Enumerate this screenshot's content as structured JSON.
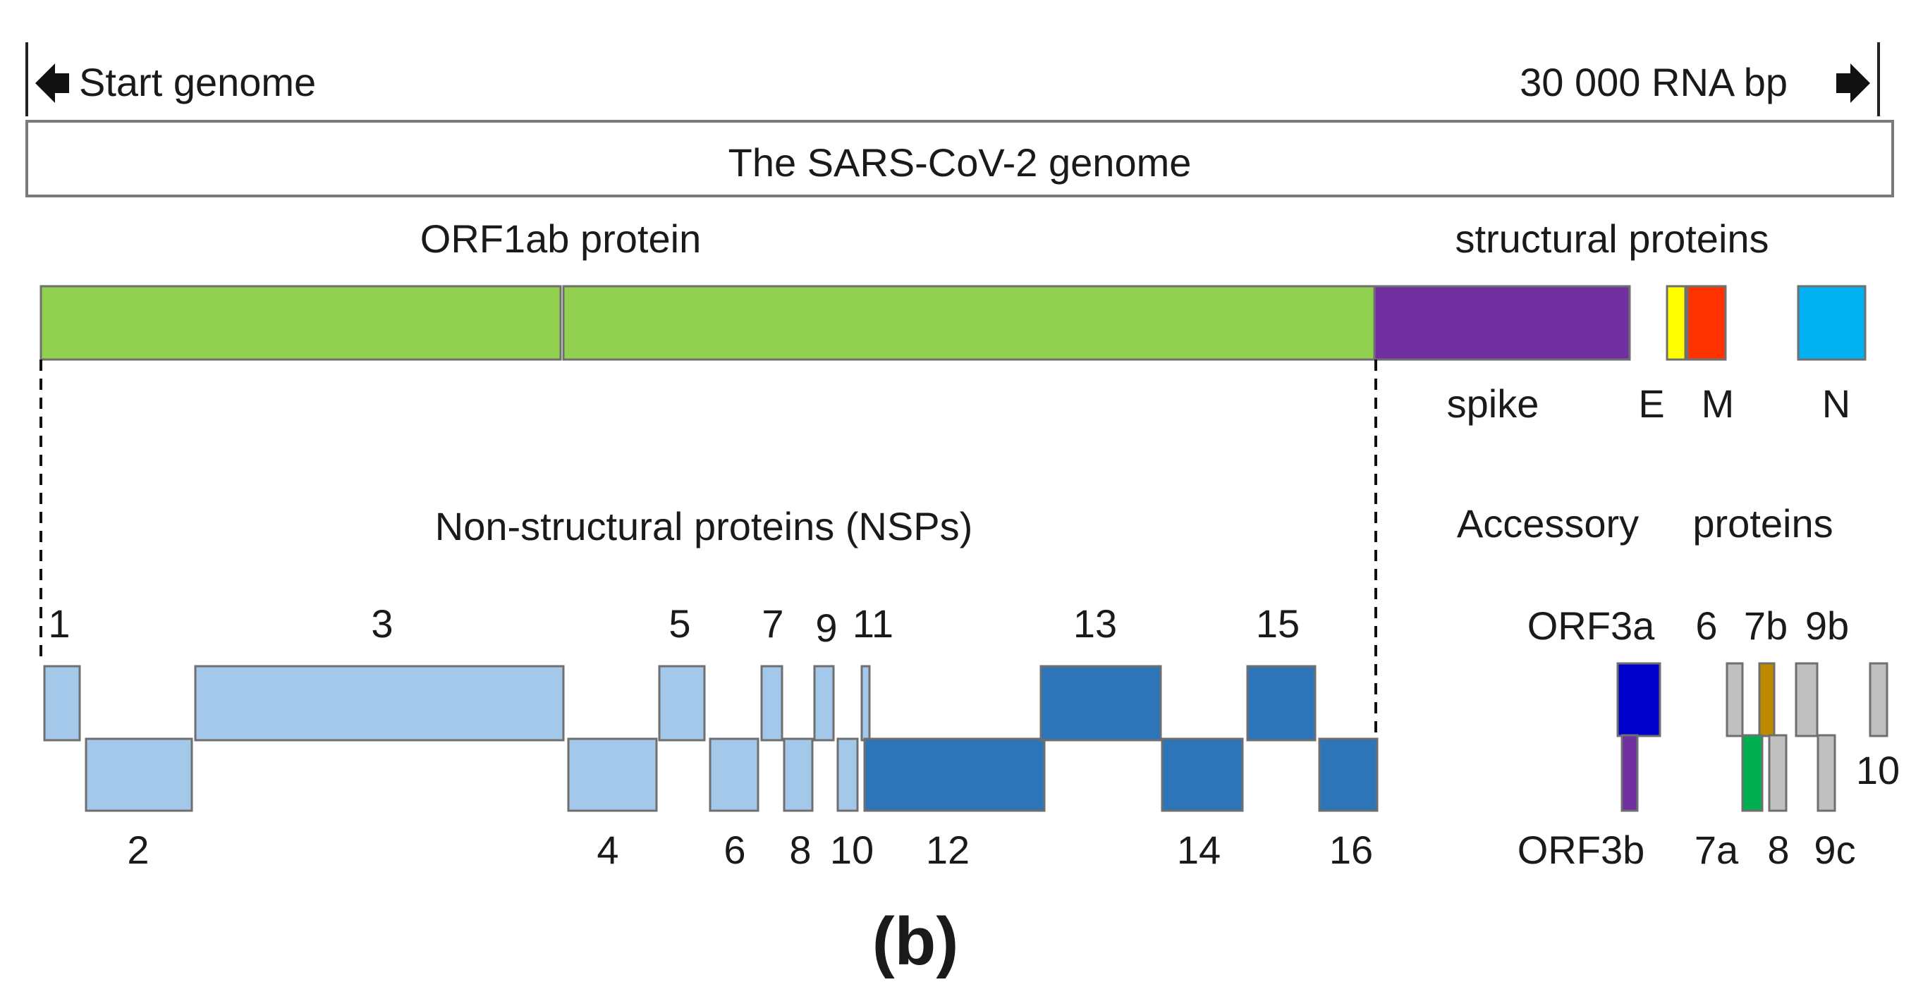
{
  "header": {
    "start_label": "Start genome",
    "end_label": "30 000 RNA bp",
    "genome_title": "The SARS-CoV-2  genome"
  },
  "orf1ab": {
    "label": "ORF1ab protein",
    "color": "#92d050"
  },
  "structural": {
    "label": "structural proteins",
    "spike": {
      "label": "spike",
      "color": "#7030a0"
    },
    "E": {
      "label": "E",
      "color": "#ffff00"
    },
    "M": {
      "label": "M",
      "color": "#ff3300"
    },
    "N": {
      "label": "N",
      "color": "#00b0f0"
    }
  },
  "nsps": {
    "label": "Non-structural proteins (NSPs)",
    "light_color": "#a4c8e9",
    "dark_color": "#2d75b8",
    "items": [
      "1",
      "2",
      "3",
      "4",
      "5",
      "6",
      "7",
      "8",
      "9",
      "10",
      "11",
      "12",
      "13",
      "14",
      "15",
      "16"
    ]
  },
  "accessory": {
    "label_word1": "Accessory",
    "label_word2": "proteins",
    "items": [
      {
        "name": "ORF3a",
        "color": "#0000cc"
      },
      {
        "name": "ORF3b",
        "color": "#7030a0"
      },
      {
        "name": "6",
        "color": "#c0c0c0"
      },
      {
        "name": "7a",
        "color": "#00b050"
      },
      {
        "name": "7b",
        "color": "#c08a00"
      },
      {
        "name": "8",
        "color": "#c0c0c0"
      },
      {
        "name": "9b",
        "color": "#c0c0c0"
      },
      {
        "name": "9c",
        "color": "#c0c0c0"
      },
      {
        "name": "10",
        "color": "#c0c0c0"
      }
    ]
  },
  "panel_label": "(b)"
}
